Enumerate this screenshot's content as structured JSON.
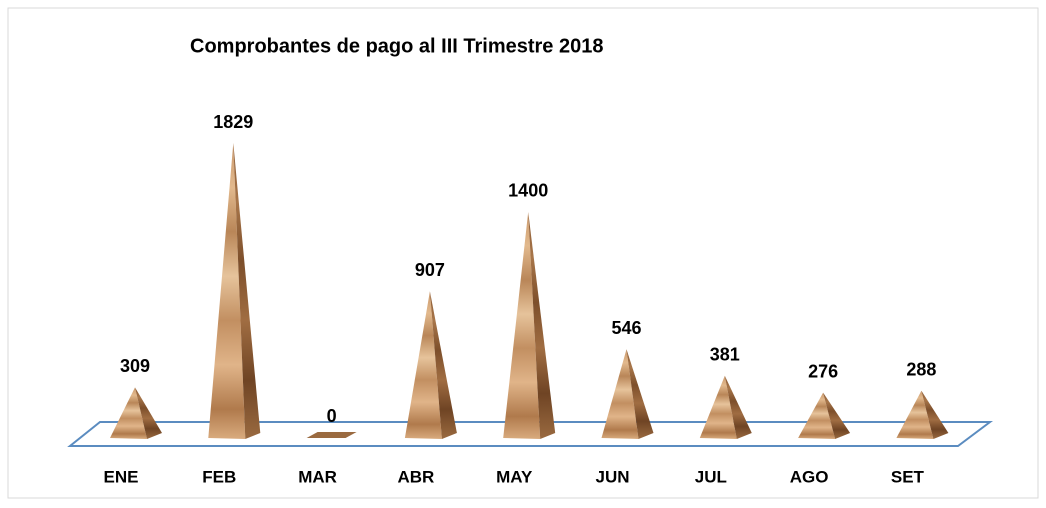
{
  "chart_data": {
    "type": "pyramid",
    "title": "Comprobantes de pago al III Trimestre 2018",
    "categories": [
      "ENE",
      "FEB",
      "MAR",
      "ABR",
      "MAY",
      "JUN",
      "JUL",
      "AGO",
      "SET"
    ],
    "values": [
      309,
      1829,
      0,
      907,
      1400,
      546,
      381,
      276,
      288
    ]
  }
}
